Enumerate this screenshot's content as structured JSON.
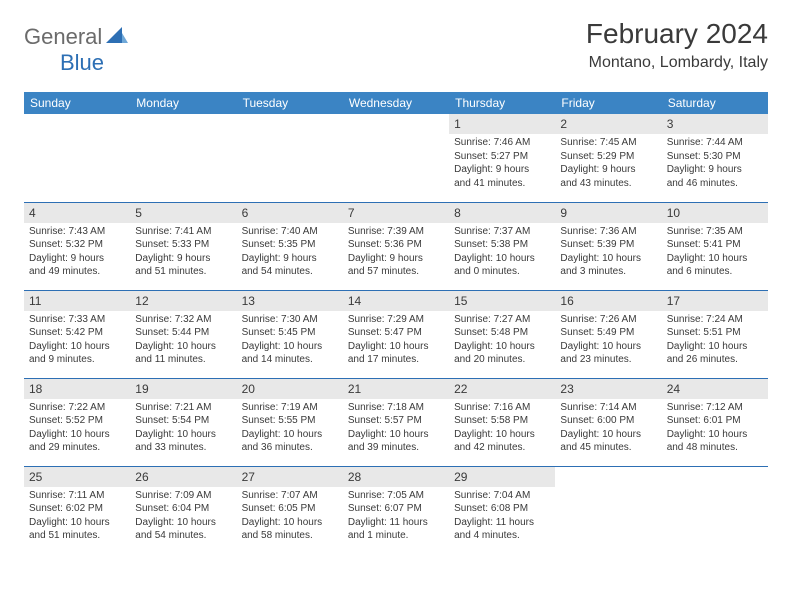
{
  "logo": {
    "general": "General",
    "blue": "Blue"
  },
  "title": "February 2024",
  "location": "Montano, Lombardy, Italy",
  "header_bg": "#3b84c4",
  "border_color": "#2d6fb4",
  "daynum_bg": "#e8e8e8",
  "text_color": "#3a3a3a",
  "daynames": [
    "Sunday",
    "Monday",
    "Tuesday",
    "Wednesday",
    "Thursday",
    "Friday",
    "Saturday"
  ],
  "weeks": [
    [
      null,
      null,
      null,
      null,
      {
        "n": "1",
        "sr": "Sunrise: 7:46 AM",
        "ss": "Sunset: 5:27 PM",
        "d1": "Daylight: 9 hours",
        "d2": "and 41 minutes."
      },
      {
        "n": "2",
        "sr": "Sunrise: 7:45 AM",
        "ss": "Sunset: 5:29 PM",
        "d1": "Daylight: 9 hours",
        "d2": "and 43 minutes."
      },
      {
        "n": "3",
        "sr": "Sunrise: 7:44 AM",
        "ss": "Sunset: 5:30 PM",
        "d1": "Daylight: 9 hours",
        "d2": "and 46 minutes."
      }
    ],
    [
      {
        "n": "4",
        "sr": "Sunrise: 7:43 AM",
        "ss": "Sunset: 5:32 PM",
        "d1": "Daylight: 9 hours",
        "d2": "and 49 minutes."
      },
      {
        "n": "5",
        "sr": "Sunrise: 7:41 AM",
        "ss": "Sunset: 5:33 PM",
        "d1": "Daylight: 9 hours",
        "d2": "and 51 minutes."
      },
      {
        "n": "6",
        "sr": "Sunrise: 7:40 AM",
        "ss": "Sunset: 5:35 PM",
        "d1": "Daylight: 9 hours",
        "d2": "and 54 minutes."
      },
      {
        "n": "7",
        "sr": "Sunrise: 7:39 AM",
        "ss": "Sunset: 5:36 PM",
        "d1": "Daylight: 9 hours",
        "d2": "and 57 minutes."
      },
      {
        "n": "8",
        "sr": "Sunrise: 7:37 AM",
        "ss": "Sunset: 5:38 PM",
        "d1": "Daylight: 10 hours",
        "d2": "and 0 minutes."
      },
      {
        "n": "9",
        "sr": "Sunrise: 7:36 AM",
        "ss": "Sunset: 5:39 PM",
        "d1": "Daylight: 10 hours",
        "d2": "and 3 minutes."
      },
      {
        "n": "10",
        "sr": "Sunrise: 7:35 AM",
        "ss": "Sunset: 5:41 PM",
        "d1": "Daylight: 10 hours",
        "d2": "and 6 minutes."
      }
    ],
    [
      {
        "n": "11",
        "sr": "Sunrise: 7:33 AM",
        "ss": "Sunset: 5:42 PM",
        "d1": "Daylight: 10 hours",
        "d2": "and 9 minutes."
      },
      {
        "n": "12",
        "sr": "Sunrise: 7:32 AM",
        "ss": "Sunset: 5:44 PM",
        "d1": "Daylight: 10 hours",
        "d2": "and 11 minutes."
      },
      {
        "n": "13",
        "sr": "Sunrise: 7:30 AM",
        "ss": "Sunset: 5:45 PM",
        "d1": "Daylight: 10 hours",
        "d2": "and 14 minutes."
      },
      {
        "n": "14",
        "sr": "Sunrise: 7:29 AM",
        "ss": "Sunset: 5:47 PM",
        "d1": "Daylight: 10 hours",
        "d2": "and 17 minutes."
      },
      {
        "n": "15",
        "sr": "Sunrise: 7:27 AM",
        "ss": "Sunset: 5:48 PM",
        "d1": "Daylight: 10 hours",
        "d2": "and 20 minutes."
      },
      {
        "n": "16",
        "sr": "Sunrise: 7:26 AM",
        "ss": "Sunset: 5:49 PM",
        "d1": "Daylight: 10 hours",
        "d2": "and 23 minutes."
      },
      {
        "n": "17",
        "sr": "Sunrise: 7:24 AM",
        "ss": "Sunset: 5:51 PM",
        "d1": "Daylight: 10 hours",
        "d2": "and 26 minutes."
      }
    ],
    [
      {
        "n": "18",
        "sr": "Sunrise: 7:22 AM",
        "ss": "Sunset: 5:52 PM",
        "d1": "Daylight: 10 hours",
        "d2": "and 29 minutes."
      },
      {
        "n": "19",
        "sr": "Sunrise: 7:21 AM",
        "ss": "Sunset: 5:54 PM",
        "d1": "Daylight: 10 hours",
        "d2": "and 33 minutes."
      },
      {
        "n": "20",
        "sr": "Sunrise: 7:19 AM",
        "ss": "Sunset: 5:55 PM",
        "d1": "Daylight: 10 hours",
        "d2": "and 36 minutes."
      },
      {
        "n": "21",
        "sr": "Sunrise: 7:18 AM",
        "ss": "Sunset: 5:57 PM",
        "d1": "Daylight: 10 hours",
        "d2": "and 39 minutes."
      },
      {
        "n": "22",
        "sr": "Sunrise: 7:16 AM",
        "ss": "Sunset: 5:58 PM",
        "d1": "Daylight: 10 hours",
        "d2": "and 42 minutes."
      },
      {
        "n": "23",
        "sr": "Sunrise: 7:14 AM",
        "ss": "Sunset: 6:00 PM",
        "d1": "Daylight: 10 hours",
        "d2": "and 45 minutes."
      },
      {
        "n": "24",
        "sr": "Sunrise: 7:12 AM",
        "ss": "Sunset: 6:01 PM",
        "d1": "Daylight: 10 hours",
        "d2": "and 48 minutes."
      }
    ],
    [
      {
        "n": "25",
        "sr": "Sunrise: 7:11 AM",
        "ss": "Sunset: 6:02 PM",
        "d1": "Daylight: 10 hours",
        "d2": "and 51 minutes."
      },
      {
        "n": "26",
        "sr": "Sunrise: 7:09 AM",
        "ss": "Sunset: 6:04 PM",
        "d1": "Daylight: 10 hours",
        "d2": "and 54 minutes."
      },
      {
        "n": "27",
        "sr": "Sunrise: 7:07 AM",
        "ss": "Sunset: 6:05 PM",
        "d1": "Daylight: 10 hours",
        "d2": "and 58 minutes."
      },
      {
        "n": "28",
        "sr": "Sunrise: 7:05 AM",
        "ss": "Sunset: 6:07 PM",
        "d1": "Daylight: 11 hours",
        "d2": "and 1 minute."
      },
      {
        "n": "29",
        "sr": "Sunrise: 7:04 AM",
        "ss": "Sunset: 6:08 PM",
        "d1": "Daylight: 11 hours",
        "d2": "and 4 minutes."
      },
      null,
      null
    ]
  ]
}
